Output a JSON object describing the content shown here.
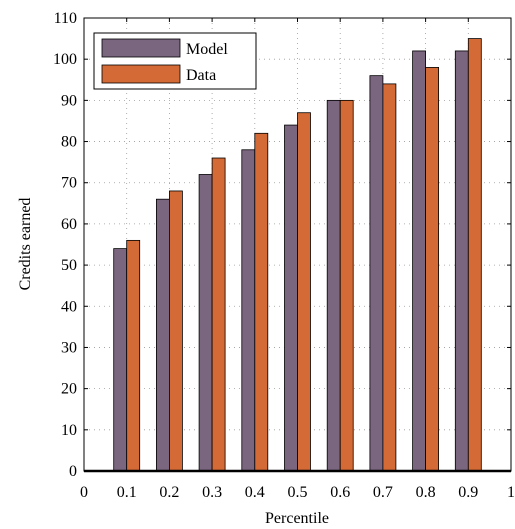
{
  "chart_data": {
    "type": "bar",
    "x": [
      0.1,
      0.2,
      0.3,
      0.4,
      0.5,
      0.6,
      0.7,
      0.8,
      0.9
    ],
    "series": [
      {
        "name": "Model",
        "color": "#7b6680",
        "values": [
          54,
          66,
          72,
          78,
          84,
          90,
          96,
          102,
          102
        ]
      },
      {
        "name": "Data",
        "color": "#d46a35",
        "values": [
          56,
          68,
          76,
          82,
          87,
          90,
          94,
          98,
          105
        ]
      }
    ],
    "title": "",
    "xlabel": "Percentile",
    "ylabel": "Credits earned",
    "xlim": [
      0,
      1
    ],
    "ylim": [
      0,
      110
    ],
    "xticks": [
      0,
      0.1,
      0.2,
      0.3,
      0.4,
      0.5,
      0.6,
      0.7,
      0.8,
      0.9,
      1
    ],
    "xtick_labels": [
      "0",
      "0.1",
      "0.2",
      "0.3",
      "0.4",
      "0.5",
      "0.6",
      "0.7",
      "0.8",
      "0.9",
      "1"
    ],
    "yticks": [
      0,
      10,
      20,
      30,
      40,
      50,
      60,
      70,
      80,
      90,
      100,
      110
    ],
    "ytick_labels": [
      "0",
      "10",
      "20",
      "30",
      "40",
      "50",
      "60",
      "70",
      "80",
      "90",
      "100",
      "110"
    ],
    "grid": true,
    "legend_position": "top-left"
  }
}
